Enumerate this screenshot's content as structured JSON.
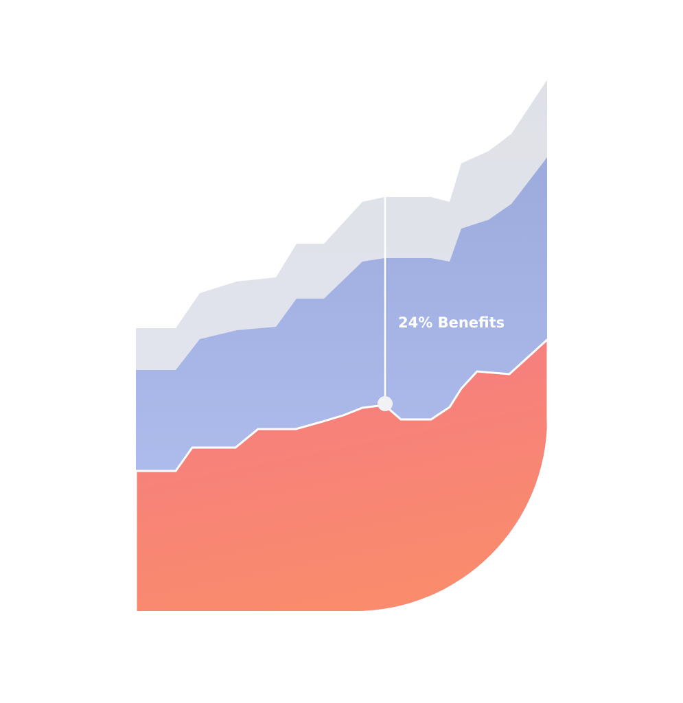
{
  "callout": {
    "label": "24% Benefits"
  }
}
